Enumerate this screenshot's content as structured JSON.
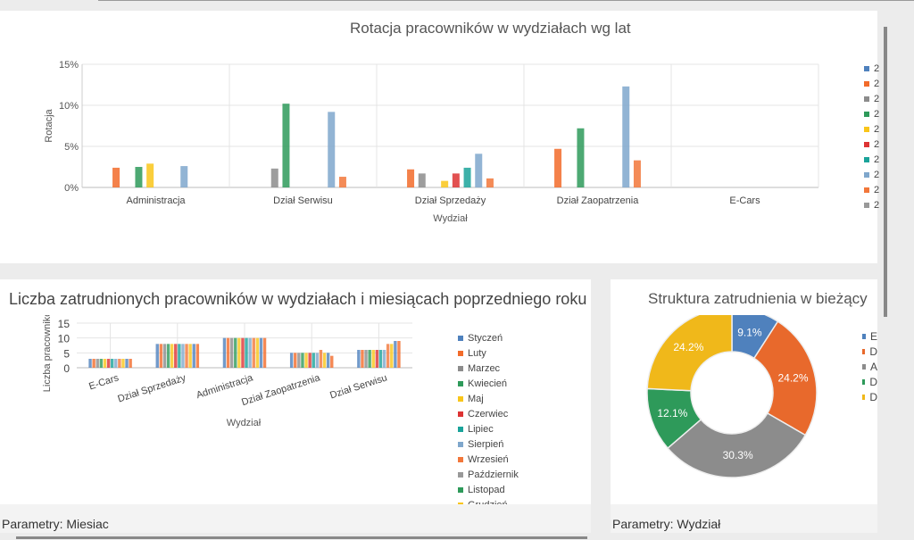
{
  "colors": [
    "#4f81bd",
    "#f26b2a",
    "#8c8c8c",
    "#2e9a5a",
    "#f9c51a",
    "#dd3333",
    "#1aa39a",
    "#7fa7cc",
    "#f2773a",
    "#999999"
  ],
  "top_chart": {
    "title": "Rotacja pracowników w wydziałach wg lat",
    "ylabel": "Rotacja",
    "xlabel": "Wydział",
    "chart_data": {
      "type": "bar",
      "categories": [
        "Administracja",
        "Dział Serwisu",
        "Dział Sprzedaży",
        "Dział Zaopatrzenia",
        "E-Cars"
      ],
      "ylim": [
        0,
        15
      ],
      "yticks": [
        "0%",
        "5%",
        "10%",
        "15%"
      ],
      "legend": [
        "2",
        "2",
        "2",
        "2",
        "2",
        "2",
        "2",
        "2",
        "2",
        "2"
      ],
      "series_values": [
        [
          null,
          2.4,
          null,
          2.5,
          2.9,
          null,
          null,
          2.6,
          null,
          null
        ],
        [
          null,
          null,
          2.3,
          10.2,
          null,
          null,
          null,
          9.2,
          1.3,
          null
        ],
        [
          null,
          2.2,
          1.7,
          null,
          0.8,
          1.7,
          2.4,
          4.1,
          1.1,
          null
        ],
        [
          null,
          4.7,
          null,
          7.2,
          null,
          null,
          null,
          12.3,
          3.3,
          null
        ],
        [
          null,
          null,
          null,
          null,
          null,
          null,
          null,
          null,
          null,
          null
        ]
      ]
    }
  },
  "bottom_chart": {
    "title": "Liczba zatrudnionych pracowników w wydziałach i miesiącach poprzedniego roku",
    "ylabel": "Liczba pracowników",
    "xlabel": "Wydział",
    "footer": "Parametry: Miesiac",
    "chart_data": {
      "type": "bar",
      "categories": [
        "E-Cars",
        "Dział Sprzedaży",
        "Administracja",
        "Dział Zaopatrzenia",
        "Dział Serwisu"
      ],
      "ylim": [
        0,
        15
      ],
      "yticks": [
        "0",
        "5",
        "10",
        "15"
      ],
      "legend": [
        "Styczeń",
        "Luty",
        "Marzec",
        "Kwiecień",
        "Maj",
        "Czerwiec",
        "Lipiec",
        "Sierpień",
        "Wrzesień",
        "Październik",
        "Listopad",
        "Grudzień"
      ],
      "values": [
        [
          3,
          3,
          3,
          3,
          3,
          3,
          3,
          3,
          3,
          3,
          3,
          3
        ],
        [
          8,
          8,
          8,
          8,
          8,
          8,
          8,
          8,
          8,
          8,
          8,
          8
        ],
        [
          10,
          10,
          10,
          10,
          10,
          10,
          10,
          10,
          10,
          10,
          10,
          10
        ],
        [
          5,
          5,
          5,
          5,
          5,
          5,
          5,
          5,
          6,
          5,
          5,
          4
        ],
        [
          6,
          6,
          6,
          6,
          6,
          6,
          6,
          6,
          8,
          8,
          9,
          9
        ]
      ]
    }
  },
  "pie_chart": {
    "title": "Struktura zatrudnienia w bieżący",
    "footer": "Parametry: Wydział",
    "chart_data": {
      "type": "pie",
      "legend": [
        "E",
        "D",
        "A",
        "D",
        "D"
      ],
      "values": [
        9.1,
        24.2,
        30.3,
        12.1,
        24.2
      ],
      "labels": [
        "9.1%",
        "24.2%",
        "30.3%",
        "12.1%",
        "24.2%"
      ],
      "colors": [
        "#4f81bd",
        "#e8692c",
        "#8c8c8c",
        "#2e9a5a",
        "#f0b81a"
      ]
    }
  }
}
